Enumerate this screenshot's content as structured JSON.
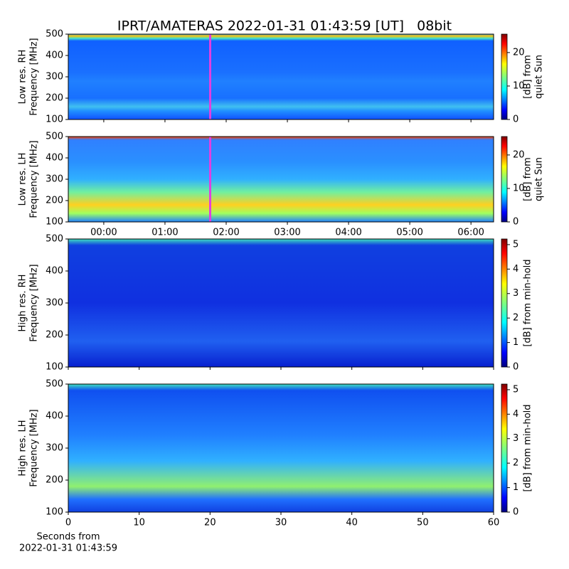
{
  "chart_data": [
    {
      "type": "spectrogram",
      "title": "IPRT/AMATERAS 2022-01-31 01:43:59 [UT]   08bit",
      "colormap": "jet",
      "ylabel": [
        "Low res. RH",
        "Frequency [MHz]"
      ],
      "ylim": [
        100,
        500
      ],
      "yticks": [
        100,
        200,
        300,
        400,
        500
      ],
      "xlim": [
        -0.58,
        6.37
      ],
      "xtick_labels": false,
      "xticks": [
        {
          "value": 0,
          "label": "00:00"
        },
        {
          "value": 1,
          "label": "01:00"
        },
        {
          "value": 2,
          "label": "02:00"
        },
        {
          "value": 3,
          "label": "03:00"
        },
        {
          "value": 4,
          "label": "04:00"
        },
        {
          "value": 5,
          "label": "05:00"
        },
        {
          "value": 6,
          "label": "06:00"
        }
      ],
      "colorbar": {
        "label": [
          "[dB] from",
          "quiet Sun"
        ],
        "lim": [
          0,
          25.5
        ],
        "ticks": [
          0,
          10,
          20
        ]
      }
    },
    {
      "type": "spectrogram",
      "colormap": "jet",
      "ylabel": [
        "Low res. LH",
        "Frequency [MHz]"
      ],
      "ylim": [
        100,
        500
      ],
      "yticks": [
        100,
        200,
        300,
        400,
        500
      ],
      "xlim": [
        -0.58,
        6.37
      ],
      "xtick_labels": true,
      "xticks": [
        {
          "value": 0,
          "label": "00:00"
        },
        {
          "value": 1,
          "label": "01:00"
        },
        {
          "value": 2,
          "label": "02:00"
        },
        {
          "value": 3,
          "label": "03:00"
        },
        {
          "value": 4,
          "label": "04:00"
        },
        {
          "value": 5,
          "label": "05:00"
        },
        {
          "value": 6,
          "label": "06:00"
        }
      ],
      "colorbar": {
        "label": [
          "[dB] from",
          "quiet Sun"
        ],
        "lim": [
          0,
          25.5
        ],
        "ticks": [
          0,
          10,
          20
        ]
      }
    },
    {
      "type": "spectrogram",
      "colormap": "jet",
      "ylabel": [
        "High res. RH",
        "Frequency [MHz]"
      ],
      "ylim": [
        100,
        500
      ],
      "yticks": [
        100,
        200,
        300,
        400,
        500
      ],
      "xlim": [
        0,
        60
      ],
      "xtick_labels": false,
      "xticks": [
        0,
        10,
        20,
        30,
        40,
        50,
        60
      ],
      "colorbar": {
        "label": [
          "[dB] from min-hold"
        ],
        "lim": [
          0,
          5.23
        ],
        "ticks": [
          0,
          1,
          2,
          3,
          4,
          5
        ]
      }
    },
    {
      "type": "spectrogram",
      "colormap": "jet",
      "ylabel": [
        "High res. LH",
        "Frequency [MHz]"
      ],
      "ylim": [
        100,
        500
      ],
      "yticks": [
        100,
        200,
        300,
        400,
        500
      ],
      "xlim": [
        0,
        60
      ],
      "xtick_labels": true,
      "xticks": [
        0,
        10,
        20,
        30,
        40,
        50,
        60
      ],
      "xlabel": [
        "Seconds from",
        "2022-01-31 01:43:59"
      ],
      "colorbar": {
        "label": [
          "[dB] from min-hold"
        ],
        "lim": [
          0,
          5.23
        ],
        "ticks": [
          0,
          1,
          2,
          3,
          4,
          5
        ]
      }
    }
  ]
}
